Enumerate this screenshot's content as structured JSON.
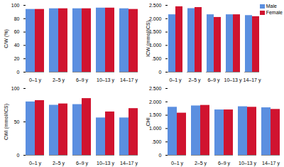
{
  "chart_data": [
    {
      "type": "bar",
      "ylabel": "C/W (%)",
      "categories": [
        "0–1 y",
        "2–5 y",
        "6–9 y",
        "10–13 y",
        "14–17 y"
      ],
      "series": [
        {
          "name": "Male",
          "color": "#5b8fe0",
          "values": [
            94,
            95,
            95,
            96,
            95
          ]
        },
        {
          "name": "Female",
          "color": "#d0132f",
          "values": [
            94,
            95,
            95,
            96,
            94
          ]
        }
      ],
      "ylim": [
        0,
        100
      ],
      "yticks": [
        0,
        20,
        40,
        60,
        80,
        100
      ]
    },
    {
      "type": "bar",
      "ylabel": "ICW (mmol/ICS)",
      "categories": [
        "0–1 y",
        "2–5 y",
        "6–9 y",
        "10–13 y",
        "14–17 y"
      ],
      "series": [
        {
          "name": "Male",
          "color": "#5b8fe0",
          "values": [
            2.15,
            2.38,
            2.15,
            2.15,
            2.12
          ]
        },
        {
          "name": "Female",
          "color": "#d0132f",
          "values": [
            2.45,
            2.42,
            2.05,
            2.15,
            2.08
          ]
        }
      ],
      "ylim": [
        0,
        2.5
      ],
      "yticks": [
        {
          "value": 0,
          "label": "0"
        },
        {
          "value": 0.5,
          "label": ".500"
        },
        {
          "value": 1,
          "label": "1.000"
        },
        {
          "value": 1.5,
          "label": "1.500"
        },
        {
          "value": 2,
          "label": "2.000"
        },
        {
          "value": 2.5,
          "label": "2.500"
        }
      ],
      "legend": "top-right"
    },
    {
      "type": "bar",
      "ylabel": "CWI (mmol/ICS)",
      "categories": [
        "0–1 y",
        "2–5 y",
        "6–9 y",
        "10–13 y",
        "14–17 y"
      ],
      "series": [
        {
          "name": "Male",
          "color": "#5b8fe0",
          "values": [
            80,
            75,
            76,
            56,
            56
          ]
        },
        {
          "name": "Female",
          "color": "#d0132f",
          "values": [
            82,
            77,
            85,
            65,
            70
          ]
        }
      ],
      "ylim": [
        0,
        100
      ],
      "yticks": [
        0,
        50,
        100
      ]
    },
    {
      "type": "bar",
      "ylabel": "CHI",
      "categories": [
        "0–1 y",
        "2–5 y",
        "6–9 y",
        "10–13 y",
        "14–17 y"
      ],
      "series": [
        {
          "name": "Male",
          "color": "#5b8fe0",
          "values": [
            1.8,
            1.85,
            1.7,
            1.82,
            1.78
          ]
        },
        {
          "name": "Female",
          "color": "#d0132f",
          "values": [
            1.58,
            1.87,
            1.7,
            1.8,
            1.72
          ]
        }
      ],
      "ylim": [
        0,
        2.5
      ],
      "yticks": [
        {
          "value": 0,
          "label": "0"
        },
        {
          "value": 0.5,
          "label": ".500"
        },
        {
          "value": 1,
          "label": "1.000"
        },
        {
          "value": 1.5,
          "label": "1.500"
        },
        {
          "value": 2,
          "label": "2.000"
        },
        {
          "value": 2.5,
          "label": "2.500"
        }
      ]
    }
  ]
}
